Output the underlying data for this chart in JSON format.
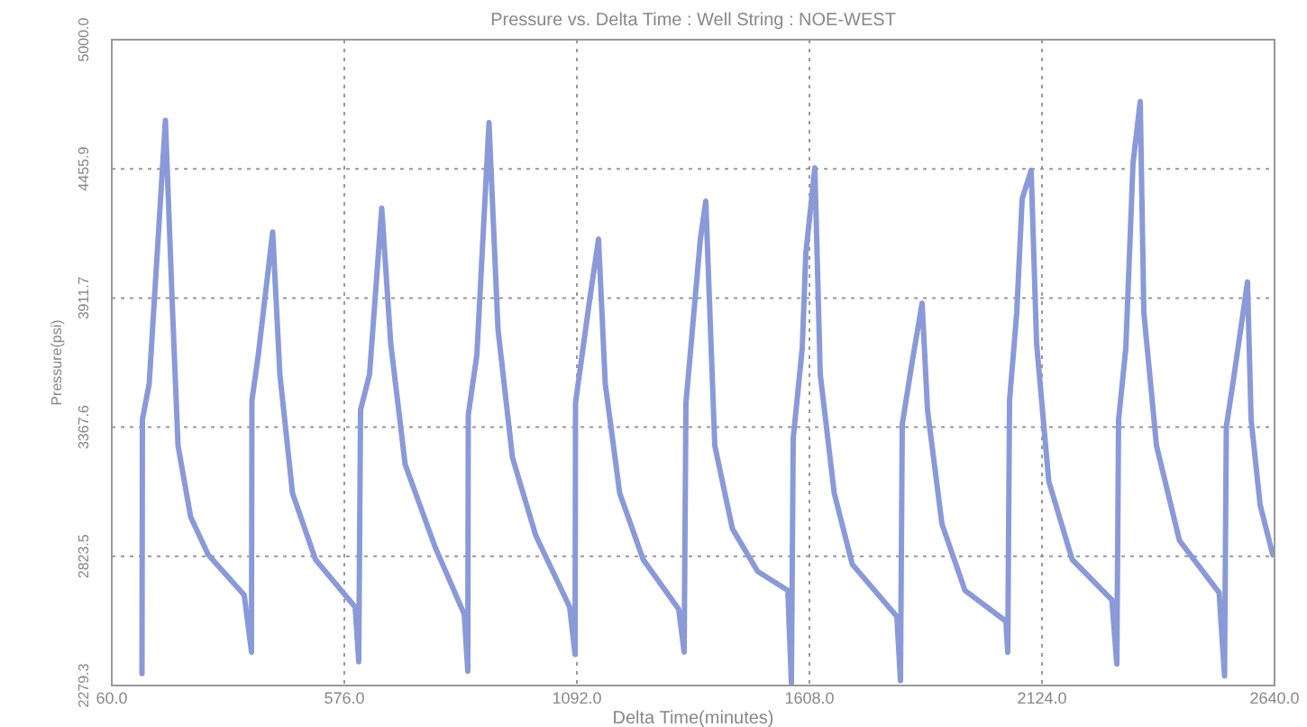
{
  "chart_data": {
    "type": "line",
    "title": "Pressure vs. Delta Time : Well String : NOE-WEST",
    "xlabel": "Delta Time(minutes)",
    "ylabel": "Pressure(psi)",
    "xlim": [
      60,
      2640
    ],
    "xticks": [
      {
        "value": 60,
        "label": "60.0"
      },
      {
        "value": 576,
        "label": "576.0"
      },
      {
        "value": 1092,
        "label": "1092.0"
      },
      {
        "value": 1608,
        "label": "1608.0"
      },
      {
        "value": 2124,
        "label": "2124.0"
      },
      {
        "value": 2640,
        "label": "2640.0"
      }
    ],
    "ylim": [
      2279.3,
      5000
    ],
    "yticks": [
      {
        "value": 2279.3,
        "label": "2279.3"
      },
      {
        "value": 2823.5,
        "label": "2823.5"
      },
      {
        "value": 3367.6,
        "label": "3367.6"
      },
      {
        "value": 3911.7,
        "label": "3911.7"
      },
      {
        "value": 4455.9,
        "label": "4455.9"
      },
      {
        "value": 5000,
        "label": "5000.0"
      }
    ],
    "grid": true,
    "line_style": "solid",
    "series": [
      {
        "color": "#8a9ad8",
        "x": [
          127,
          128,
          143,
          179,
          195,
          207,
          235,
          274,
          354,
          370,
          371,
          385,
          417,
          433,
          461,
          512,
          600,
          608,
          612,
          632,
          659,
          679,
          711,
          778,
          842,
          850,
          851,
          870,
          897,
          917,
          949,
          1001,
          1076,
          1088,
          1089,
          1120,
          1140,
          1155,
          1187,
          1239,
          1318,
          1330,
          1334,
          1366,
          1378,
          1398,
          1437,
          1493,
          1560,
          1568,
          1572,
          1592,
          1600,
          1620,
          1632,
          1663,
          1703,
          1802,
          1810,
          1814,
          1834,
          1858,
          1870,
          1902,
          1953,
          2044,
          2048,
          2052,
          2068,
          2080,
          2100,
          2112,
          2139,
          2191,
          2279,
          2290,
          2294,
          2310,
          2326,
          2342,
          2350,
          2378,
          2429,
          2517,
          2529,
          2533,
          2549,
          2580,
          2588,
          2608,
          2636
        ],
        "values": [
          2330,
          3400,
          3550,
          4660,
          3850,
          3290,
          2990,
          2830,
          2660,
          2420,
          3480,
          3670,
          4190,
          3590,
          3090,
          2810,
          2610,
          2380,
          3440,
          3590,
          4290,
          3720,
          3210,
          2860,
          2580,
          2340,
          3420,
          3670,
          4650,
          3780,
          3240,
          2910,
          2610,
          2410,
          3470,
          3900,
          4160,
          3550,
          3090,
          2810,
          2600,
          2420,
          3470,
          4160,
          4320,
          3290,
          2940,
          2760,
          2680,
          2290,
          3320,
          3700,
          4100,
          4460,
          3590,
          3090,
          2790,
          2570,
          2300,
          3380,
          3620,
          3890,
          3440,
          2960,
          2680,
          2550,
          2420,
          3480,
          3850,
          4330,
          4450,
          3720,
          3140,
          2810,
          2640,
          2370,
          3400,
          3700,
          4480,
          4740,
          3850,
          3290,
          2890,
          2670,
          2320,
          3370,
          3570,
          3980,
          3400,
          3040,
          2830
        ]
      }
    ]
  }
}
